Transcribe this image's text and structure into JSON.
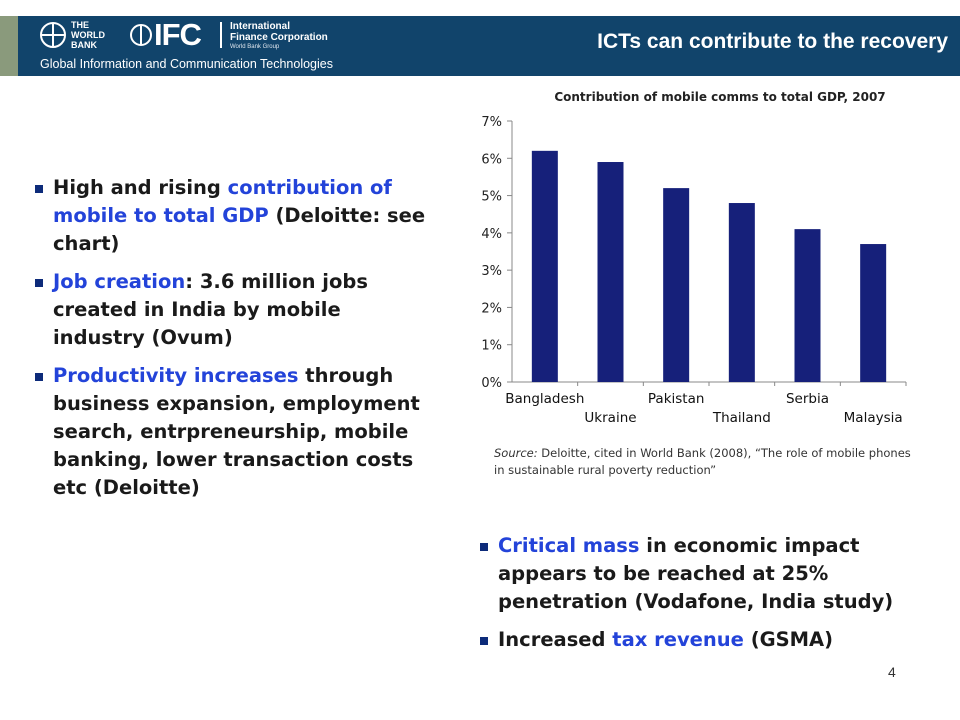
{
  "header": {
    "wb_logo_text": "THE\nWORLD\nBANK",
    "ifc_mark": "IFC",
    "ifc_name": "International\nFinance Corporation",
    "ifc_group": "World Bank Group",
    "subtitle": "Global Information and Communication Technologies",
    "title": "ICTs can contribute to the recovery",
    "colors": {
      "banner": "#11446b",
      "accent": "#8a9a7c"
    }
  },
  "left_bullets": [
    {
      "pre": "High and rising ",
      "highlight": "contribution of mobile to total GDP",
      "post": " (Deloitte: see chart)"
    },
    {
      "pre": "",
      "highlight": "Job creation",
      "post": ": 3.6 million jobs created in India by mobile industry (Ovum)"
    },
    {
      "pre": "",
      "highlight": "Productivity increases",
      "post": " through business expansion, employment search, entrpreneurship, mobile banking, lower transaction costs etc (Deloitte)"
    }
  ],
  "right_bullets": [
    {
      "pre": "",
      "highlight": "Critical mass",
      "post": " in economic impact appears to be reached at 25% penetration (Vodafone, India study)"
    },
    {
      "pre": "Increased ",
      "highlight": "tax revenue",
      "post": " (GSMA)"
    }
  ],
  "chart_data": {
    "type": "bar",
    "title": "Contribution of mobile comms to total GDP, 2007",
    "categories": [
      "Bangladesh",
      "Ukraine",
      "Pakistan",
      "Thailand",
      "Serbia",
      "Malaysia"
    ],
    "values": [
      6.2,
      5.9,
      5.2,
      4.8,
      4.1,
      3.7
    ],
    "ylim": [
      0,
      7
    ],
    "yticks": [
      "0%",
      "1%",
      "2%",
      "3%",
      "4%",
      "5%",
      "6%",
      "7%"
    ],
    "xlabel": "",
    "ylabel": "",
    "bar_color": "#16207a",
    "grid": false
  },
  "source": {
    "label": "Source:",
    "text": " Deloitte, cited in World Bank (2008), “The role of mobile phones in sustainable rural poverty reduction”"
  },
  "page_number": "4",
  "colors": {
    "highlight": "#2343d9",
    "bullet": "#0d2b7a"
  }
}
